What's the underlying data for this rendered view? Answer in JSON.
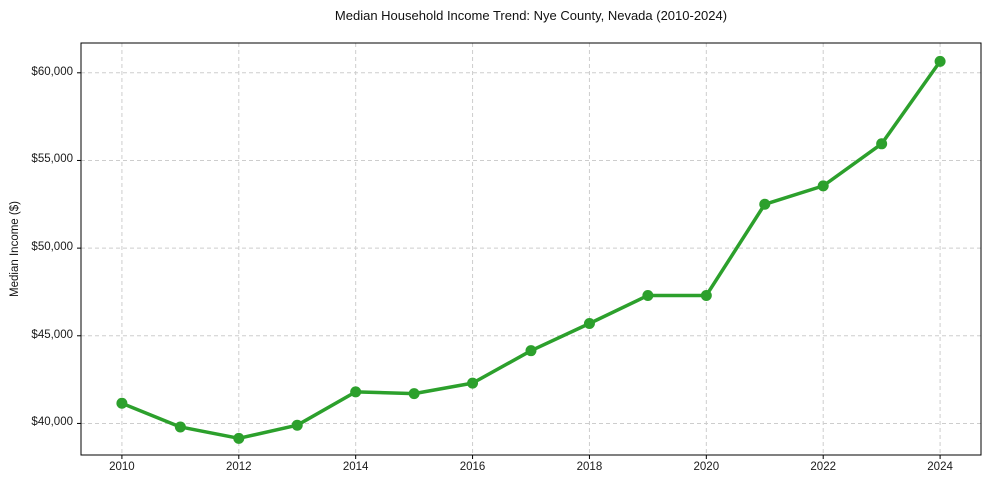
{
  "chart_data": {
    "type": "line",
    "title": "Median Household Income Trend: Nye County, Nevada (2010-2024)",
    "xlabel": "",
    "ylabel": "Median Income ($)",
    "series_name": "Median household income",
    "x": [
      2010,
      2011,
      2012,
      2013,
      2014,
      2015,
      2016,
      2017,
      2018,
      2019,
      2020,
      2021,
      2022,
      2023,
      2024
    ],
    "values": [
      41150,
      39800,
      39150,
      39900,
      41800,
      41700,
      42300,
      44150,
      45700,
      47300,
      47300,
      52500,
      53550,
      55950,
      60650
    ],
    "xlim": [
      2009.3,
      2024.7
    ],
    "ylim": [
      38200,
      61700
    ],
    "xticks": [
      2010,
      2012,
      2014,
      2016,
      2018,
      2020,
      2022,
      2024
    ],
    "yticks": [
      {
        "value": 40000,
        "label": "$40,000"
      },
      {
        "value": 45000,
        "label": "$45,000"
      },
      {
        "value": 50000,
        "label": "$50,000"
      },
      {
        "value": 55000,
        "label": "$55,000"
      },
      {
        "value": 60000,
        "label": "$60,000"
      }
    ],
    "grid": "dashed",
    "grid_color": "#cdcdcd",
    "line_color": "#2ca02c",
    "marker": "circle",
    "marker_color": "#2ca02c",
    "spine_color": "#000000",
    "background_color": "#ffffff",
    "legend": "none"
  }
}
